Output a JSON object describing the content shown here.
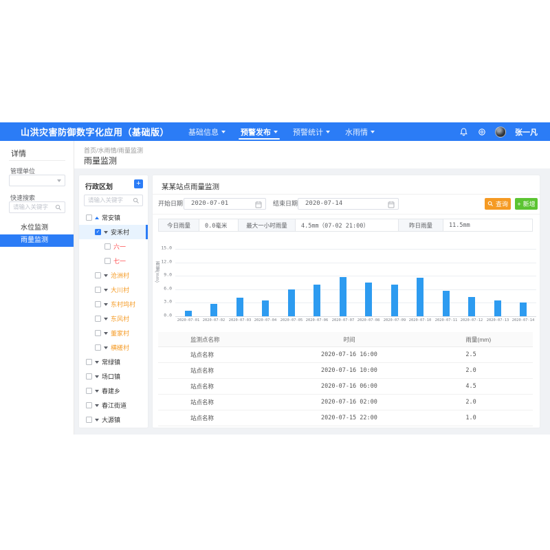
{
  "colors": {
    "primary": "#2b7cf6",
    "bar": "#2d9bf0",
    "orange_text": "#f59a23",
    "red_text": "#ff4d4f",
    "query_btn": "#f59a23",
    "add_btn": "#5cc432",
    "selected_bg": "#e8f3fe"
  },
  "header": {
    "title": "山洪灾害防御数字化应用（基础版）",
    "nav": [
      {
        "label": "基础信息",
        "active": false
      },
      {
        "label": "预警发布",
        "active": true
      },
      {
        "label": "预警统计",
        "active": false
      },
      {
        "label": "水雨情",
        "active": false
      }
    ],
    "user_name": "张一凡"
  },
  "breadcrumb": "首页/水雨情/雨量监测",
  "page_title": "雨量监测",
  "sidebar": {
    "title": "详情",
    "org_label": "管理单位",
    "search_label": "快速搜索",
    "search_placeholder": "请输入关键字",
    "items": [
      {
        "label": "水位监测",
        "active": false
      },
      {
        "label": "雨量监测",
        "active": true
      }
    ]
  },
  "tree": {
    "title": "行政区划",
    "add_label": "+",
    "search_placeholder": "请输入关键字",
    "nodes": [
      {
        "label": "常安镇",
        "level": 0,
        "checked": false,
        "arrow": "up",
        "color": "default",
        "selected": false
      },
      {
        "label": "安禾村",
        "level": 1,
        "checked": true,
        "arrow": "down",
        "color": "default",
        "selected": true
      },
      {
        "label": "六一",
        "level": 2,
        "checked": false,
        "arrow": "none",
        "color": "red",
        "selected": false
      },
      {
        "label": "七一",
        "level": 2,
        "checked": false,
        "arrow": "none",
        "color": "red",
        "selected": false
      },
      {
        "label": "沧洲村",
        "level": 1,
        "checked": false,
        "arrow": "down",
        "color": "orange",
        "selected": false
      },
      {
        "label": "大川村",
        "level": 1,
        "checked": false,
        "arrow": "down",
        "color": "orange",
        "selected": false
      },
      {
        "label": "东村坞村",
        "level": 1,
        "checked": false,
        "arrow": "down",
        "color": "orange",
        "selected": false
      },
      {
        "label": "东风村",
        "level": 1,
        "checked": false,
        "arrow": "down",
        "color": "orange",
        "selected": false
      },
      {
        "label": "董家村",
        "level": 1,
        "checked": false,
        "arrow": "down",
        "color": "orange",
        "selected": false
      },
      {
        "label": "横槎村",
        "level": 1,
        "checked": false,
        "arrow": "down",
        "color": "orange",
        "selected": false
      },
      {
        "label": "常绿镇",
        "level": 0,
        "checked": false,
        "arrow": "down",
        "color": "default",
        "selected": false
      },
      {
        "label": "场口镇",
        "level": 0,
        "checked": false,
        "arrow": "down",
        "color": "default",
        "selected": false
      },
      {
        "label": "春建乡",
        "level": 0,
        "checked": false,
        "arrow": "down",
        "color": "default",
        "selected": false
      },
      {
        "label": "春江街道",
        "level": 0,
        "checked": false,
        "arrow": "down",
        "color": "default",
        "selected": false
      },
      {
        "label": "大源镇",
        "level": 0,
        "checked": false,
        "arrow": "down",
        "color": "default",
        "selected": false
      }
    ]
  },
  "panel": {
    "title": "某某站点雨量监测",
    "start_label": "开始日期：",
    "start_value": "2020-07-01",
    "end_label": "结束日期：",
    "end_value": "2020-07-14",
    "query_label": "查询",
    "add_label": "新增"
  },
  "stats": [
    {
      "label": "今日雨量",
      "value": "0.0毫米"
    },
    {
      "label": "最大一小时雨量",
      "value": "4.5mm（07-02 21:00）"
    },
    {
      "label": "昨日雨量",
      "value": "11.5mm"
    }
  ],
  "chart_data": {
    "type": "bar",
    "title": "",
    "xlabel": "",
    "ylabel": "雨量(mm)",
    "categories": [
      "2020-07-01",
      "2020-07-02",
      "2020-07-03",
      "2020-07-04",
      "2020-07-05",
      "2020-07-06",
      "2020-07-07",
      "2020-07-08",
      "2020-07-09",
      "2020-07-10",
      "2020-07-11",
      "2020-07-12",
      "2020-07-13",
      "2020-07-14"
    ],
    "values": [
      1.2,
      2.8,
      4.2,
      3.5,
      6.0,
      7.0,
      8.8,
      7.5,
      7.0,
      8.5,
      5.7,
      4.3,
      3.5,
      3.0
    ],
    "ylim": [
      0,
      15
    ],
    "yticks": [
      0.0,
      3.0,
      6.0,
      9.0,
      12.0,
      15.0
    ],
    "grid": true,
    "legend": "none",
    "bar_color": "#2d9bf0"
  },
  "table": {
    "headers": [
      "监测点名称",
      "时间",
      "雨量(mm)"
    ],
    "rows": [
      {
        "name": "站点名称",
        "time": "2020-07-16 16:00",
        "value": "2.5"
      },
      {
        "name": "站点名称",
        "time": "2020-07-16 10:00",
        "value": "2.0"
      },
      {
        "name": "站点名称",
        "time": "2020-07-16 06:00",
        "value": "4.5"
      },
      {
        "name": "站点名称",
        "time": "2020-07-16 02:00",
        "value": "2.0"
      },
      {
        "name": "站点名称",
        "time": "2020-07-15 22:00",
        "value": "1.0"
      }
    ]
  }
}
